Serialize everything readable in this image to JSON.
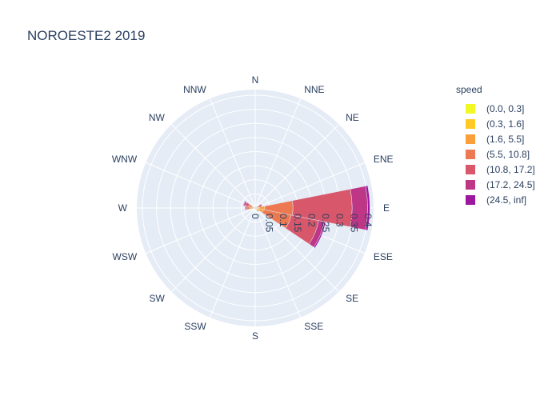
{
  "chart_data": {
    "type": "barpolar",
    "title": "NOROESTE2 2019",
    "directions": [
      "N",
      "NNE",
      "NE",
      "ENE",
      "E",
      "ESE",
      "SE",
      "SSE",
      "S",
      "SSW",
      "SW",
      "WSW",
      "W",
      "WNW",
      "NW",
      "NNW"
    ],
    "radial_axis": {
      "range": [
        0,
        0.42
      ],
      "tick_labels": [
        "0",
        "0.05",
        "0.1",
        "0.15",
        "0.2",
        "0.25",
        "0.3",
        "0.35",
        "0.4"
      ],
      "tick_values": [
        0,
        0.05,
        0.1,
        0.15,
        0.2,
        0.25,
        0.3,
        0.35,
        0.4
      ],
      "angle_deg": -90
    },
    "legend": {
      "title": "speed",
      "position": "right"
    },
    "series": [
      {
        "name": "(0.0, 0.3]",
        "color": "#f0f921",
        "values": [
          0,
          0,
          0,
          0,
          0.002,
          0.002,
          0.001,
          0,
          0,
          0,
          0,
          0,
          0.002,
          0,
          0,
          0
        ]
      },
      {
        "name": "(0.3, 1.6]",
        "color": "#fdca26",
        "values": [
          0.002,
          0.002,
          0.002,
          0.003,
          0.012,
          0.01,
          0.004,
          0.002,
          0.002,
          0.002,
          0.002,
          0.002,
          0.006,
          0.004,
          0.002,
          0.002
        ]
      },
      {
        "name": "(1.6, 5.5]",
        "color": "#fb9f3a",
        "values": [
          0.001,
          0.002,
          0.003,
          0.005,
          0.02,
          0.018,
          0.005,
          0.002,
          0.001,
          0.001,
          0.001,
          0.002,
          0.012,
          0.008,
          0.002,
          0.001
        ]
      },
      {
        "name": "(5.5, 10.8]",
        "color": "#ed7953",
        "values": [
          0,
          0.001,
          0.002,
          0.006,
          0.1,
          0.1,
          0.004,
          0.001,
          0,
          0,
          0,
          0.001,
          0.01,
          0.012,
          0.001,
          0
        ]
      },
      {
        "name": "(10.8, 17.2]",
        "color": "#d8576b",
        "values": [
          0,
          0,
          0.001,
          0.01,
          0.21,
          0.1,
          0.002,
          0,
          0,
          0,
          0,
          0,
          0.006,
          0.012,
          0,
          0
        ]
      },
      {
        "name": "(17.2, 24.5]",
        "color": "#bd3786",
        "values": [
          0,
          0,
          0,
          0.002,
          0.055,
          0.02,
          0,
          0,
          0,
          0,
          0,
          0,
          0.001,
          0.006,
          0,
          0
        ]
      },
      {
        "name": "(24.5, inf]",
        "color": "#9c179e",
        "values": [
          0,
          0,
          0,
          0,
          0.008,
          0.005,
          0,
          0,
          0,
          0,
          0,
          0,
          0,
          0.002,
          0,
          0
        ]
      }
    ]
  },
  "colors": {
    "polar_bg": "#e5ecf6",
    "grid": "#ffffff",
    "text": "#2a3f5f"
  }
}
